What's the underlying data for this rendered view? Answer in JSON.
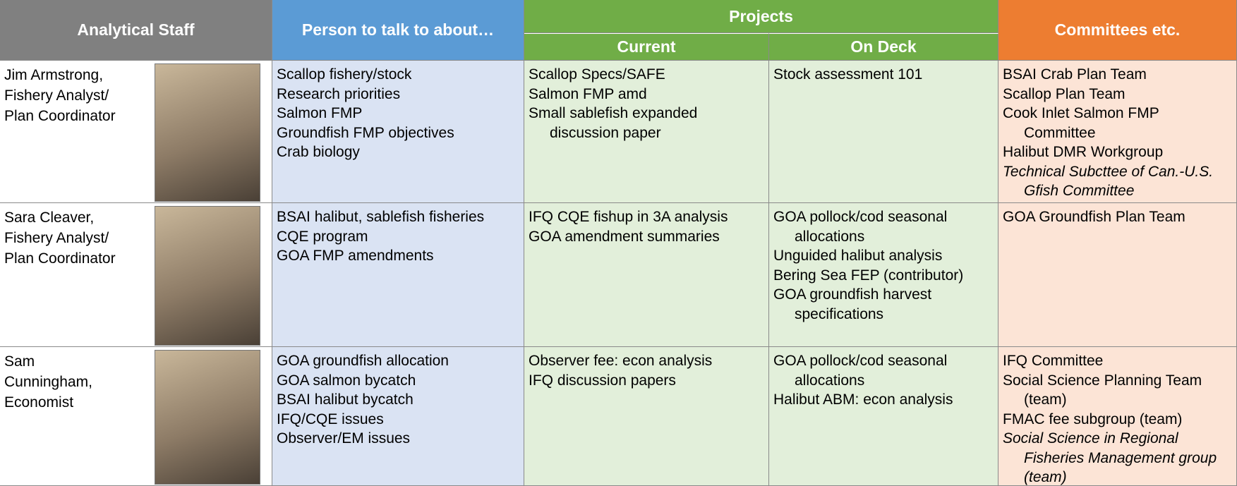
{
  "header": {
    "analytical_staff": "Analytical Staff",
    "person": "Person to talk to about…",
    "projects": "Projects",
    "current": "Current",
    "on_deck": "On Deck",
    "committees": "Committees etc."
  },
  "rows": [
    {
      "staff": [
        "Jim Armstrong,",
        "Fishery Analyst/",
        "Plan Coordinator"
      ],
      "person": [
        "Scallop fishery/stock",
        "Research priorities",
        "Salmon FMP",
        "Groundfish FMP objectives",
        "Crab biology"
      ],
      "current": [
        "Scallop Specs/SAFE",
        "Salmon FMP amd",
        "Small sablefish expanded discussion paper"
      ],
      "on_deck": [
        "Stock assessment 101"
      ],
      "committees": [
        "BSAI Crab Plan Team",
        "Scallop Plan Team",
        "Cook Inlet Salmon FMP Committee",
        "Halibut DMR Workgroup",
        {
          "text": "Technical Subcttee of Can.-U.S. Gfish Committee",
          "italic": true
        }
      ]
    },
    {
      "staff": [
        "Sara Cleaver,",
        "Fishery Analyst/",
        "Plan Coordinator"
      ],
      "person": [
        "BSAI halibut, sablefish fisheries",
        "CQE program",
        "GOA FMP amendments"
      ],
      "current": [
        "IFQ CQE fishup in 3A analysis",
        "GOA amendment summaries"
      ],
      "on_deck": [
        "GOA pollock/cod seasonal allocations",
        "Unguided halibut analysis",
        "Bering Sea FEP (contributor)",
        "GOA groundfish harvest specifications"
      ],
      "committees": [
        "GOA Groundfish Plan Team"
      ]
    },
    {
      "staff": [
        "Sam",
        "Cunningham,",
        "Economist"
      ],
      "person": [
        "GOA groundfish allocation",
        "GOA salmon bycatch",
        "BSAI halibut bycatch",
        "IFQ/CQE issues",
        "Observer/EM issues"
      ],
      "current": [
        "Observer fee: econ analysis",
        "IFQ discussion papers"
      ],
      "on_deck": [
        "GOA pollock/cod seasonal allocations",
        "Halibut ABM: econ analysis"
      ],
      "committees": [
        "IFQ Committee",
        "Social Science Planning Team (team)",
        "FMAC fee subgroup (team)",
        {
          "text": "Social Science in Regional Fisheries Management group (team)",
          "italic": true
        }
      ]
    }
  ]
}
